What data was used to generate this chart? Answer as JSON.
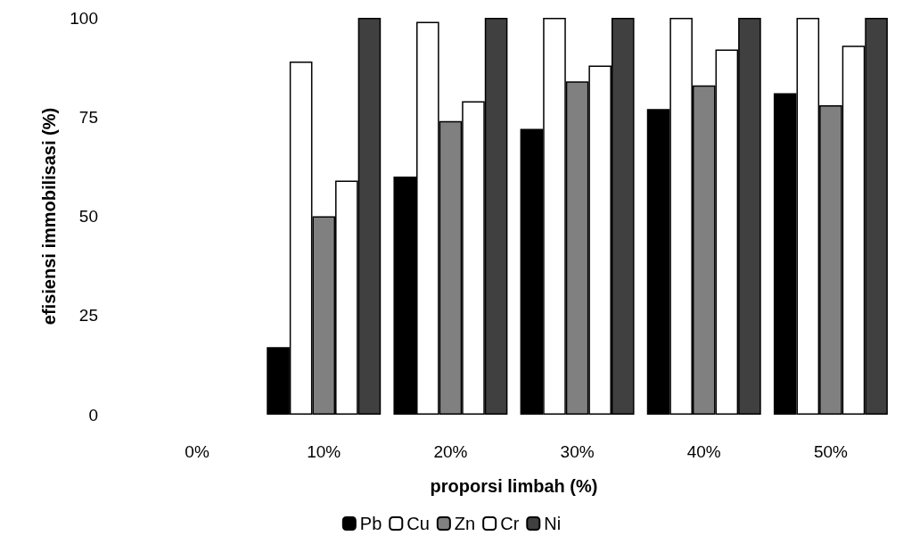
{
  "chart_data": {
    "type": "bar",
    "xlabel": "proporsi limbah (%)",
    "ylabel": "efisiensi immobilisasi (%)",
    "categories": [
      "0%",
      "10%",
      "20%",
      "30%",
      "40%",
      "50%"
    ],
    "series": [
      {
        "name": "Pb",
        "color": "#000000",
        "values": [
          null,
          17,
          60,
          72,
          77,
          81
        ]
      },
      {
        "name": "Cu",
        "color": "#ffffff",
        "values": [
          null,
          89,
          99,
          100,
          100,
          100
        ]
      },
      {
        "name": "Zn",
        "color": "#808080",
        "values": [
          null,
          50,
          74,
          84,
          83,
          78
        ]
      },
      {
        "name": "Cr",
        "color": "#ffffff",
        "values": [
          null,
          59,
          79,
          88,
          92,
          93
        ]
      },
      {
        "name": "Ni",
        "color": "#404040",
        "values": [
          null,
          100,
          100,
          100,
          100,
          100
        ]
      }
    ],
    "ylim": [
      0,
      100
    ],
    "yticks": [
      0,
      25,
      50,
      75,
      100
    ],
    "grid": false,
    "legend": "bottom"
  }
}
